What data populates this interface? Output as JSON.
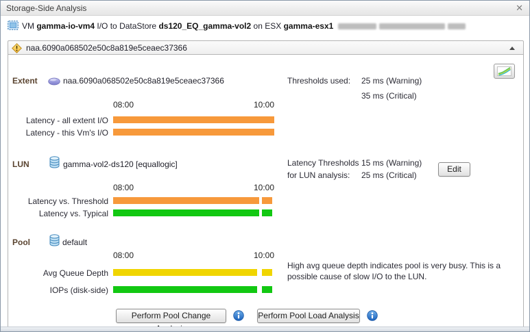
{
  "window": {
    "title": "Storage-Side Analysis",
    "close_glyph": "✕"
  },
  "header": {
    "vm_prefix": "VM",
    "vm_name": "gamma-io-vm4",
    "io_text": "I/O to DataStore",
    "datastore_name": "ds120_EQ_gamma-vol2",
    "esx_text": "on ESX",
    "esx_name": "gamma-esx1"
  },
  "alert_header": {
    "extent_id": "naa.6090a068502e50c8a819e5ceaec37366"
  },
  "colors": {
    "warning_orange": "#F7993B",
    "ok_green": "#12C812",
    "busy_yellow": "#F0D500",
    "info_blue": "#2F7FD6"
  },
  "extent": {
    "section_label": "Extent",
    "name": "naa.6090a068502e50c8a819e5ceaec37366",
    "thresholds_label": "Thresholds used:",
    "threshold_warning": "25 ms (Warning)",
    "threshold_critical": "35 ms (Critical)",
    "time_start": "08:00",
    "time_end": "10:00",
    "bars": [
      {
        "label": "Latency - all extent I/O",
        "color": "#F7993B",
        "segments": [
          [
            0,
            100
          ]
        ]
      },
      {
        "label": "Latency - this Vm's I/O",
        "color": "#F7993B",
        "segments": [
          [
            0,
            100
          ]
        ]
      }
    ]
  },
  "lun": {
    "section_label": "LUN",
    "name": "gamma-vol2-ds120 [equallogic]",
    "thresholds_label_line1": "Latency Thresholds",
    "thresholds_label_line2": "for LUN analysis:",
    "threshold_warning": "15 ms (Warning)",
    "threshold_critical": "25 ms (Critical)",
    "edit_button": "Edit",
    "time_start": "08:00",
    "time_end": "10:00",
    "bars": [
      {
        "label": "Latency vs. Threshold",
        "color": "#F7993B",
        "segments": [
          [
            0,
            90.5
          ],
          [
            92.2,
            98.6
          ]
        ]
      },
      {
        "label": "Latency vs. Typical",
        "color": "#12C812",
        "segments": [
          [
            0,
            90.5
          ],
          [
            92.2,
            98.6
          ]
        ]
      }
    ]
  },
  "pool": {
    "section_label": "Pool",
    "name": "default",
    "time_start": "08:00",
    "time_end": "10:00",
    "bars": [
      {
        "label": "Avg Queue Depth",
        "color": "#F0D500",
        "segments": [
          [
            0,
            89.4
          ],
          [
            92.2,
            98.6
          ]
        ]
      },
      {
        "label": "IOPs (disk-side)",
        "color": "#12C812",
        "segments": [
          [
            0,
            89.4
          ],
          [
            92.2,
            98.6
          ]
        ]
      }
    ],
    "note": "High avg queue depth indicates pool is very busy. This is a possible cause of slow I/O to the LUN."
  },
  "actions": {
    "pool_change_button": "Perform Pool Change Analysis",
    "pool_load_button": "Perform Pool Load Analysis"
  }
}
